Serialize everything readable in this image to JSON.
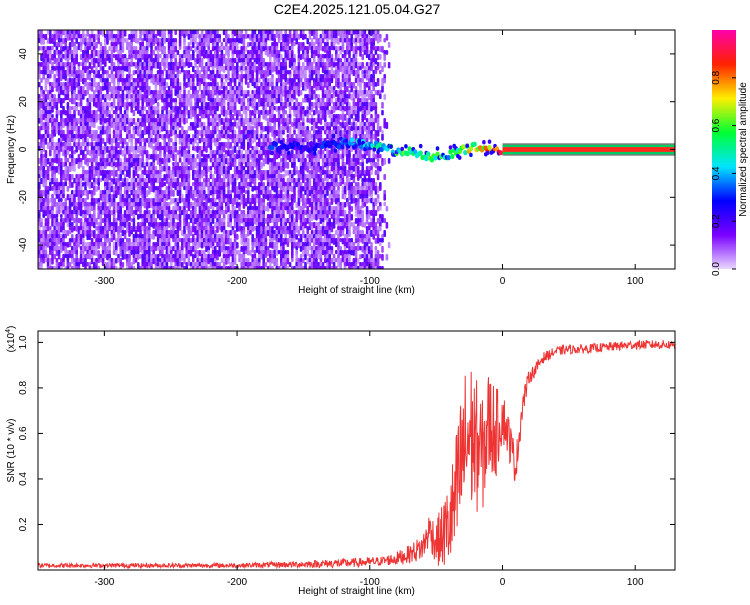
{
  "figure_title": "C2E4.2025.121.05.04.G27",
  "chart_data": [
    {
      "type": "heatmap",
      "title": "C2E4.2025.121.05.04.G27",
      "xlabel": "Height of straight line (km)",
      "ylabel": "Frequency (Hz)",
      "xlim": [
        -350,
        130
      ],
      "ylim": [
        -50,
        50
      ],
      "x_ticks": [
        -300,
        -200,
        -100,
        0,
        100
      ],
      "y_ticks": [
        -40,
        -20,
        0,
        20,
        40
      ],
      "colorbar": {
        "label": "Normalized spectral amplitude",
        "range": [
          0,
          1
        ],
        "ticks": [
          "0.0",
          "0.2",
          "0.4",
          "0.6",
          "0.8"
        ],
        "tick_values": [
          0.0,
          0.2,
          0.4,
          0.6,
          0.8
        ],
        "colors": [
          "#e9d8ff",
          "#7a00ff",
          "#0000ff",
          "#00e5ff",
          "#00ff33",
          "#ffee00",
          "#ff2200",
          "#ff00aa"
        ]
      },
      "noise_region_x": [
        -350,
        -100
      ],
      "signal_track": {
        "x": [
          -175,
          -160,
          -145,
          -130,
          -115,
          -100,
          -85,
          -70,
          -55,
          -40,
          -30,
          -20,
          -10,
          0,
          130
        ],
        "y": [
          1,
          2,
          1,
          2,
          3,
          2,
          0,
          -1,
          -3,
          -2,
          0,
          1,
          0,
          0,
          0
        ],
        "amplitude": [
          0.3,
          0.25,
          0.25,
          0.3,
          0.35,
          0.45,
          0.5,
          0.55,
          0.55,
          0.5,
          0.6,
          0.7,
          0.75,
          0.95,
          1.0
        ]
      },
      "grid": false
    },
    {
      "type": "line",
      "xlabel": "Height of straight line (km)",
      "ylabel": "SNR (10 * v/v)",
      "y_multiplier": "(x10",
      "y_multiplier_exp": "4",
      "y_multiplier_close": ")",
      "xlim": [
        -350,
        130
      ],
      "ylim": [
        0,
        1.05
      ],
      "x_ticks": [
        -300,
        -200,
        -100,
        0,
        100
      ],
      "y_ticks": [
        "0.2",
        "0.4",
        "0.6",
        "0.8",
        "1.0"
      ],
      "y_tick_values": [
        0.2,
        0.4,
        0.6,
        0.8,
        1.0
      ],
      "series": [
        {
          "color": "#ee3333",
          "x": [
            -350,
            -300,
            -250,
            -200,
            -150,
            -120,
            -100,
            -90,
            -80,
            -70,
            -60,
            -55,
            -50,
            -45,
            -40,
            -35,
            -30,
            -25,
            -20,
            -15,
            -10,
            -5,
            0,
            5,
            10,
            15,
            20,
            25,
            30,
            40,
            50,
            60,
            80,
            100,
            130
          ],
          "y": [
            0.02,
            0.02,
            0.02,
            0.02,
            0.025,
            0.03,
            0.035,
            0.04,
            0.05,
            0.07,
            0.1,
            0.18,
            0.12,
            0.15,
            0.2,
            0.3,
            0.5,
            0.6,
            0.55,
            0.5,
            0.65,
            0.6,
            0.68,
            0.58,
            0.45,
            0.72,
            0.85,
            0.88,
            0.93,
            0.96,
            0.97,
            0.97,
            0.98,
            0.99,
            0.99
          ],
          "noise_amplitude": [
            0.01,
            0.01,
            0.01,
            0.01,
            0.015,
            0.02,
            0.02,
            0.02,
            0.03,
            0.04,
            0.06,
            0.08,
            0.1,
            0.15,
            0.2,
            0.3,
            0.35,
            0.35,
            0.3,
            0.25,
            0.25,
            0.2,
            0.12,
            0.1,
            0.08,
            0.06,
            0.03,
            0.03,
            0.025,
            0.02,
            0.02,
            0.02,
            0.02,
            0.02,
            0.02
          ]
        }
      ],
      "grid": false
    }
  ]
}
